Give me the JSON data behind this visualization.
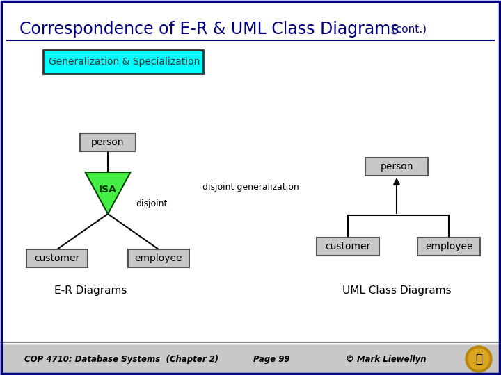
{
  "title_main": "Correspondence of E-R & UML Class Diagrams",
  "title_cont": " (cont.)",
  "bg_color": "#ffffff",
  "subtitle_box_text": "Generalization & Specialization",
  "subtitle_box_bg": "#00ffff",
  "subtitle_box_border": "#333333",
  "node_bg": "#c8c8c8",
  "node_border": "#555555",
  "er_label": "E-R Diagrams",
  "uml_label": "UML Class Diagrams",
  "disjoint_text": "disjoint",
  "disjoint_gen_text": "disjoint generalization",
  "footer_bg": "#c8c8c8",
  "footer_text1": "COP 4710: Database Systems  (Chapter 2)",
  "footer_text2": "Page 99",
  "footer_text3": "© Mark Liewellyn",
  "title_color": "#000080",
  "node_text_color": "#000000",
  "isa_fill": "#44ee44",
  "isa_border": "#004400",
  "line_color": "#000000",
  "footer_line_color": "#888888"
}
